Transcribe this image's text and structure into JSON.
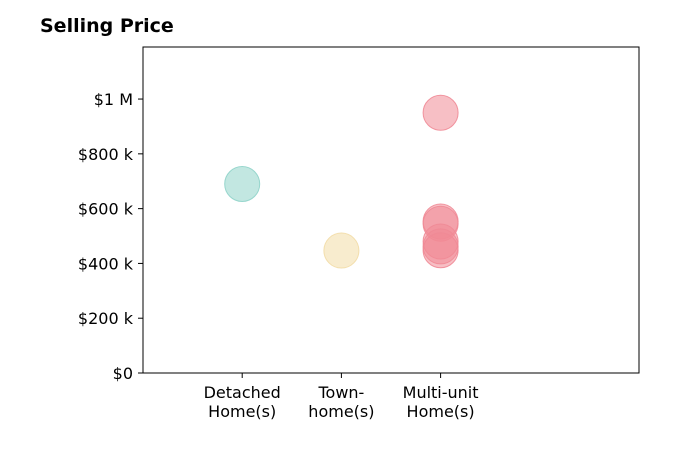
{
  "chart_data": {
    "type": "scatter",
    "title": "Selling Price",
    "xlabel": "",
    "ylabel": "",
    "categories": [
      [
        "Detached",
        "Home(s)"
      ],
      [
        "Town-",
        "home(s)"
      ],
      [
        "Multi-unit",
        "Home(s)"
      ]
    ],
    "category_colors": [
      "#8fd3c9",
      "#f2dca6",
      "#f08a96"
    ],
    "points": [
      {
        "category": 0,
        "y": 690000
      },
      {
        "category": 1,
        "y": 447000
      },
      {
        "category": 2,
        "y": 950000
      },
      {
        "category": 2,
        "y": 553000
      },
      {
        "category": 2,
        "y": 545000
      },
      {
        "category": 2,
        "y": 480000
      },
      {
        "category": 2,
        "y": 462000
      },
      {
        "category": 2,
        "y": 448000
      }
    ],
    "xlim": [
      -1,
      4
    ],
    "ylim": [
      0,
      1190000
    ],
    "yticks": [
      {
        "value": 0,
        "label": "$0"
      },
      {
        "value": 200000,
        "label": "$200 k"
      },
      {
        "value": 400000,
        "label": "$400 k"
      },
      {
        "value": 600000,
        "label": "$600 k"
      },
      {
        "value": 800000,
        "label": "$800 k"
      },
      {
        "value": 1000000,
        "label": "$1 M"
      }
    ],
    "grid": false,
    "legend": "none"
  }
}
